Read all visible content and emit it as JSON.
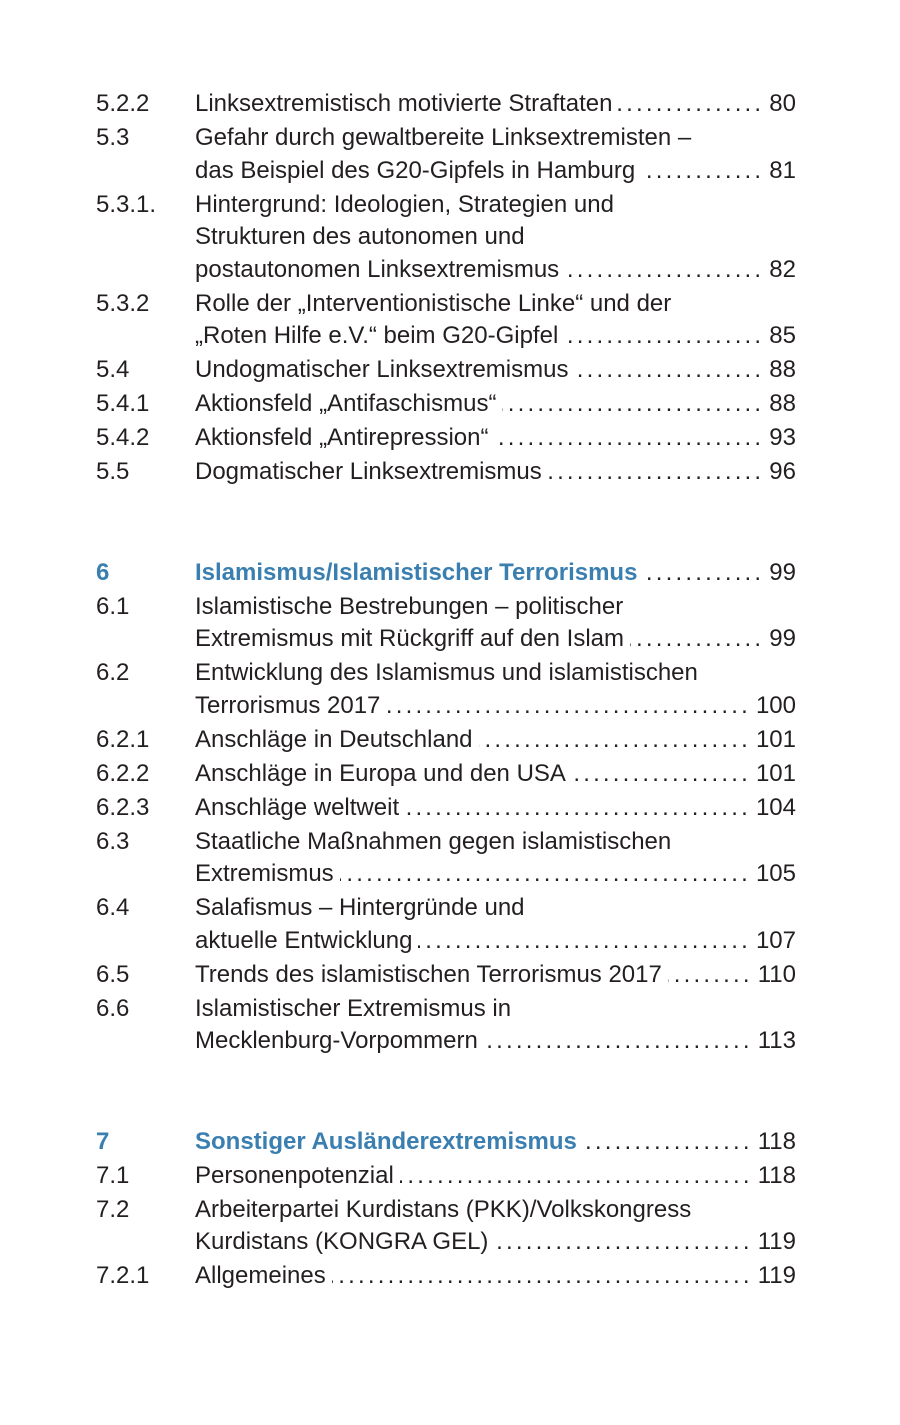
{
  "toc": [
    {
      "entries": [
        {
          "num": "5.2.2",
          "lines": [
            "Linksextremistisch motivierte Straftaten"
          ],
          "page": "80"
        },
        {
          "num": "5.3",
          "lines": [
            "Gefahr durch gewaltbereite Linksextremisten –",
            "das Beispiel des G20-Gipfels in Hamburg"
          ],
          "page": "81"
        },
        {
          "num": "5.3.1.",
          "lines": [
            "Hintergrund: Ideologien, Strategien und",
            "Strukturen des autonomen und",
            "postautonomen Linksextremismus"
          ],
          "page": "82"
        },
        {
          "num": "5.3.2",
          "lines": [
            "Rolle der „Interventionistische Linke“ und der",
            "„Roten Hilfe e.V.“ beim G20-Gipfel"
          ],
          "page": "85"
        },
        {
          "num": "5.4",
          "lines": [
            "Undogmatischer Linksextremismus"
          ],
          "page": "88"
        },
        {
          "num": "5.4.1",
          "lines": [
            "Aktionsfeld „Antifaschismus“"
          ],
          "page": "88"
        },
        {
          "num": "5.4.2",
          "lines": [
            "Aktionsfeld „Antirepression“"
          ],
          "page": "93"
        },
        {
          "num": "5.5",
          "lines": [
            "Dogmatischer Linksextremismus"
          ],
          "page": "96"
        }
      ]
    },
    {
      "entries": [
        {
          "num": "6",
          "lines": [
            "Islamismus/Islamistischer Terrorismus"
          ],
          "page": "99",
          "chapter": true
        },
        {
          "num": "6.1",
          "lines": [
            "Islamistische Bestrebungen – politischer",
            "Extremismus mit Rückgriff auf den Islam"
          ],
          "page": "99"
        },
        {
          "num": "6.2",
          "lines": [
            "Entwicklung des Islamismus und islamistischen",
            "Terrorismus 2017"
          ],
          "page": "100"
        },
        {
          "num": "6.2.1",
          "lines": [
            "Anschläge in Deutschland"
          ],
          "page": "101"
        },
        {
          "num": "6.2.2",
          "lines": [
            "Anschläge in Europa und den USA"
          ],
          "page": "101"
        },
        {
          "num": "6.2.3",
          "lines": [
            "Anschläge weltweit"
          ],
          "page": "104"
        },
        {
          "num": "6.3",
          "lines": [
            "Staatliche Maßnahmen gegen islamistischen",
            "Extremismus"
          ],
          "page": "105"
        },
        {
          "num": "6.4",
          "lines": [
            "Salafismus – Hintergründe und",
            "aktuelle Entwicklung"
          ],
          "page": "107"
        },
        {
          "num": "6.5",
          "lines": [
            "Trends des islamistischen Terrorismus 2017"
          ],
          "page": "110"
        },
        {
          "num": "6.6",
          "lines": [
            "Islamistischer Extremismus in",
            "Mecklenburg-Vorpommern"
          ],
          "page": "113"
        }
      ]
    },
    {
      "entries": [
        {
          "num": "7",
          "lines": [
            "Sonstiger Ausländerextremismus"
          ],
          "page": "118",
          "chapter": true
        },
        {
          "num": "7.1",
          "lines": [
            "Personenpotenzial"
          ],
          "page": "118"
        },
        {
          "num": "7.2",
          "lines": [
            "Arbeiterpartei Kurdistans (PKK)/Volkskongress",
            "Kurdistans (KONGRA GEL)"
          ],
          "page": "119"
        },
        {
          "num": "7.2.1",
          "lines": [
            "Allgemeines"
          ],
          "page": "119"
        }
      ]
    }
  ],
  "colors": {
    "text": "#231f20",
    "chapter_accent": "#3a7fb0"
  }
}
